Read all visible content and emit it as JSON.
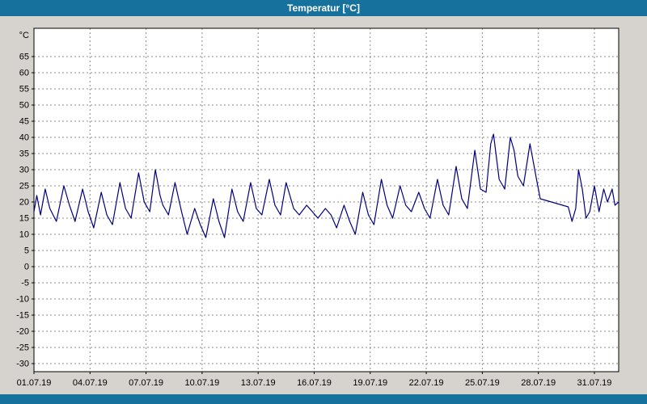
{
  "window": {
    "title": "Temperatur [°C]"
  },
  "colors": {
    "titlebar": "#17719d",
    "background": "#d6d3ce",
    "plot_background": "#ffffff",
    "line": "#000080",
    "grid": "#8c8c8c",
    "frame": "#000000",
    "title_text": "#ffffff"
  },
  "chart_data": {
    "type": "line",
    "title": "Temperatur [°C]",
    "ylabel": "°C",
    "xlabel": "",
    "grid": "dashed",
    "legend": "none",
    "ylim": [
      -32.5,
      73.75
    ],
    "xlim": [
      1,
      32.3
    ],
    "y_ticks": [
      65,
      60,
      55,
      50,
      45,
      40,
      35,
      30,
      25,
      20,
      15,
      10,
      5,
      0,
      -5,
      -10,
      -15,
      -20,
      -25,
      -30
    ],
    "x_tick_days": [
      1,
      4,
      7,
      10,
      13,
      16,
      19,
      22,
      25,
      28,
      31
    ],
    "x_tick_labels": [
      "01.07.19",
      "04.07.19",
      "07.07.19",
      "10.07.19",
      "13.07.19",
      "16.07.19",
      "19.07.19",
      "22.07.19",
      "25.07.19",
      "28.07.19",
      "31.07.19"
    ],
    "series": [
      {
        "name": "Temperatur",
        "points": [
          [
            1.0,
            17
          ],
          [
            1.15,
            22
          ],
          [
            1.35,
            16
          ],
          [
            1.6,
            24
          ],
          [
            1.85,
            18
          ],
          [
            2.2,
            14
          ],
          [
            2.6,
            25
          ],
          [
            2.9,
            19
          ],
          [
            3.2,
            14
          ],
          [
            3.6,
            24
          ],
          [
            3.9,
            17
          ],
          [
            4.2,
            12
          ],
          [
            4.6,
            23
          ],
          [
            4.9,
            16
          ],
          [
            5.2,
            13
          ],
          [
            5.6,
            26
          ],
          [
            5.9,
            18
          ],
          [
            6.2,
            15
          ],
          [
            6.6,
            29
          ],
          [
            6.9,
            20
          ],
          [
            7.2,
            17
          ],
          [
            7.5,
            30
          ],
          [
            7.75,
            22
          ],
          [
            7.9,
            19
          ],
          [
            8.2,
            16
          ],
          [
            8.55,
            26
          ],
          [
            8.9,
            17
          ],
          [
            9.2,
            10
          ],
          [
            9.6,
            18
          ],
          [
            9.9,
            13
          ],
          [
            10.2,
            9
          ],
          [
            10.6,
            21
          ],
          [
            10.9,
            14
          ],
          [
            11.2,
            9
          ],
          [
            11.6,
            24
          ],
          [
            11.9,
            17
          ],
          [
            12.2,
            14
          ],
          [
            12.6,
            26
          ],
          [
            12.9,
            18
          ],
          [
            13.2,
            16
          ],
          [
            13.6,
            27
          ],
          [
            13.9,
            19
          ],
          [
            14.2,
            16
          ],
          [
            14.5,
            26
          ],
          [
            14.9,
            18
          ],
          [
            15.2,
            16
          ],
          [
            15.6,
            19
          ],
          [
            15.9,
            17
          ],
          [
            16.2,
            15
          ],
          [
            16.6,
            18
          ],
          [
            16.9,
            16
          ],
          [
            17.2,
            12
          ],
          [
            17.6,
            19
          ],
          [
            17.9,
            14
          ],
          [
            18.2,
            10
          ],
          [
            18.6,
            23
          ],
          [
            18.9,
            16
          ],
          [
            19.2,
            13
          ],
          [
            19.6,
            27
          ],
          [
            19.9,
            19
          ],
          [
            20.2,
            15
          ],
          [
            20.6,
            25
          ],
          [
            20.9,
            19
          ],
          [
            21.2,
            17
          ],
          [
            21.6,
            23
          ],
          [
            21.9,
            18
          ],
          [
            22.2,
            15
          ],
          [
            22.6,
            27
          ],
          [
            22.9,
            19
          ],
          [
            23.2,
            16
          ],
          [
            23.6,
            31
          ],
          [
            23.9,
            21
          ],
          [
            24.2,
            18
          ],
          [
            24.6,
            36
          ],
          [
            24.9,
            24
          ],
          [
            25.2,
            23
          ],
          [
            25.45,
            38
          ],
          [
            25.6,
            41
          ],
          [
            25.9,
            27
          ],
          [
            26.2,
            24
          ],
          [
            26.5,
            40
          ],
          [
            26.7,
            36
          ],
          [
            26.9,
            28
          ],
          [
            27.2,
            25
          ],
          [
            27.55,
            38
          ],
          [
            27.9,
            27
          ],
          [
            28.1,
            21
          ],
          [
            28.4,
            20.5
          ],
          [
            28.7,
            20
          ],
          [
            29.0,
            19.5
          ],
          [
            29.3,
            19
          ],
          [
            29.6,
            18.5
          ],
          [
            29.8,
            14
          ],
          [
            30.0,
            18
          ],
          [
            30.15,
            30
          ],
          [
            30.35,
            24
          ],
          [
            30.55,
            15
          ],
          [
            30.75,
            17
          ],
          [
            31.0,
            25
          ],
          [
            31.25,
            17
          ],
          [
            31.5,
            24
          ],
          [
            31.7,
            20
          ],
          [
            31.95,
            24
          ],
          [
            32.1,
            19
          ],
          [
            32.3,
            20
          ]
        ]
      }
    ]
  }
}
